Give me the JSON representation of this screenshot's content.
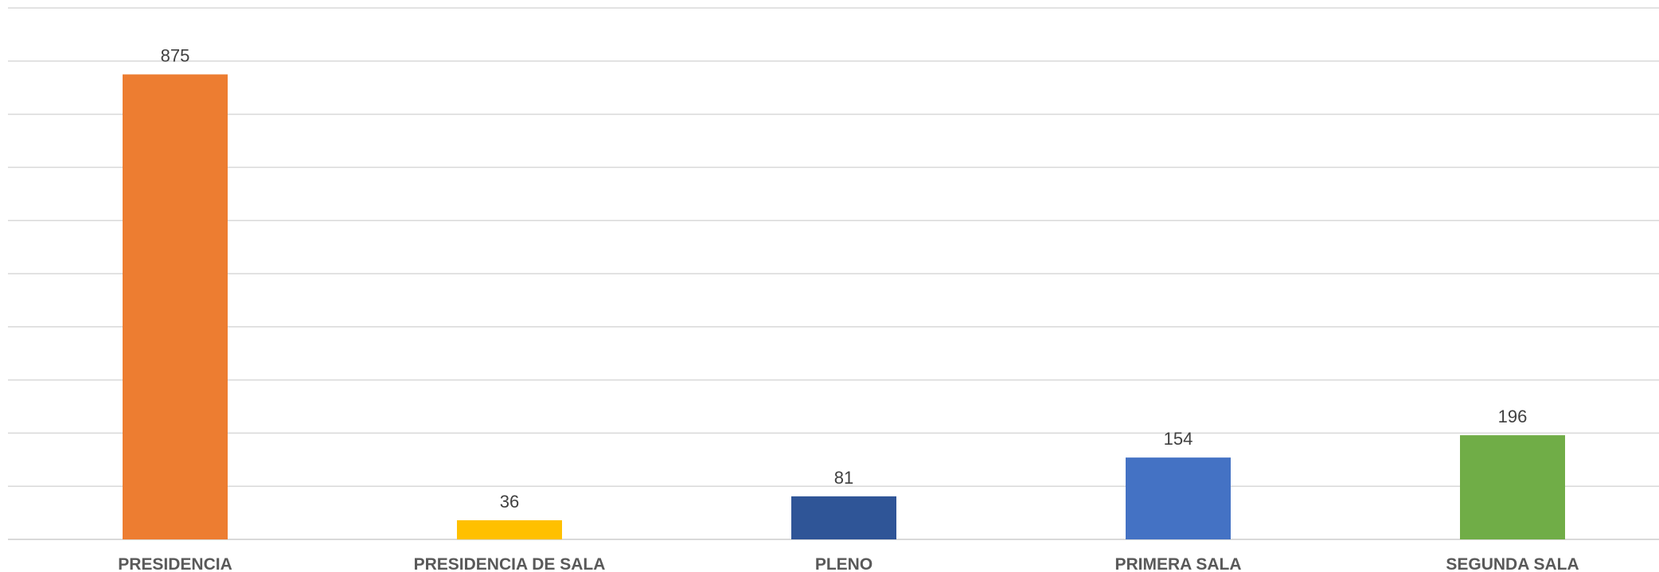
{
  "chart_data": {
    "type": "bar",
    "title": "",
    "xlabel": "",
    "ylabel": "",
    "categories": [
      "PRESIDENCIA",
      "PRESIDENCIA DE SALA",
      "PLENO",
      "PRIMERA SALA",
      "SEGUNDA SALA"
    ],
    "values": [
      875,
      36,
      81,
      154,
      196
    ],
    "colors": [
      "#ED7D31",
      "#FFC000",
      "#2F5597",
      "#4472C4",
      "#70AD47"
    ],
    "ylim": [
      0,
      1000
    ],
    "gridline_step": 100,
    "data_labels": true,
    "grid": true,
    "legend": "none",
    "y_tick_labels_shown": false
  }
}
